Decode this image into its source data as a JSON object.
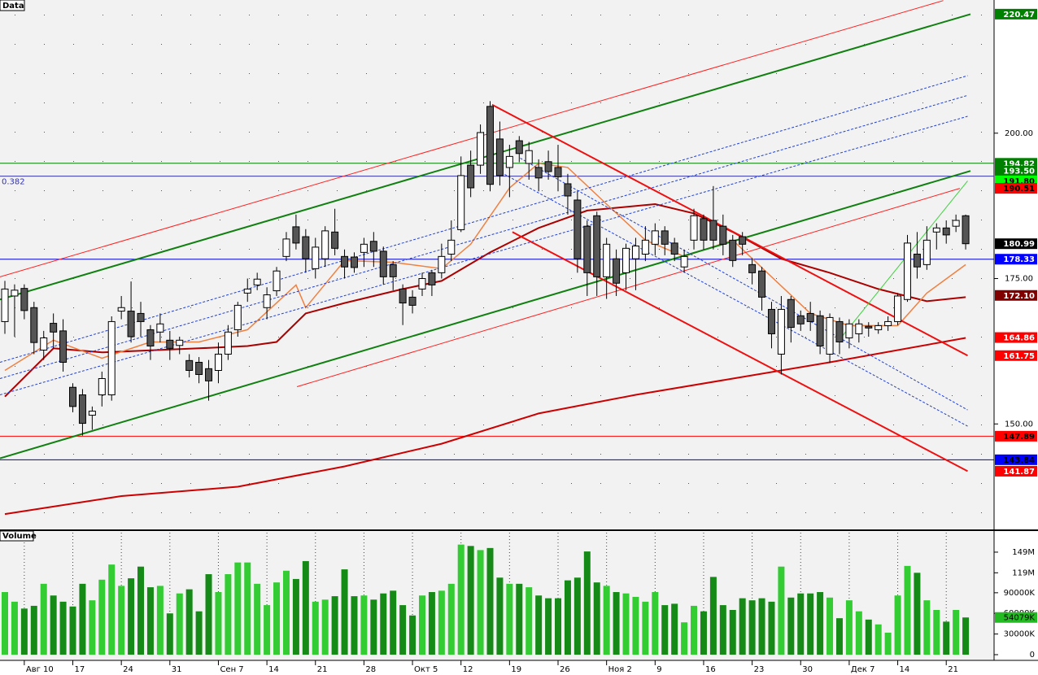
{
  "chart_data": [
    {
      "type": "candlestick",
      "title": "Data",
      "ylim": [
        132,
        222.9
      ],
      "yticks": [
        {
          "value": 150,
          "label": "150.00"
        },
        {
          "value": 175,
          "label": "175.00"
        },
        {
          "value": 200,
          "label": "200.00"
        }
      ],
      "up_color": "#ffffff",
      "down_color": "#555555",
      "open": [
        167.6,
        172,
        173.3,
        170,
        162.7,
        167.3,
        166,
        156.3,
        155,
        151.5,
        155,
        155,
        169.4,
        169.4,
        169,
        166.2,
        165.8,
        164.4,
        163.5,
        160.9,
        160.6,
        159.5,
        159.2,
        162,
        166.2,
        172.5,
        173.9,
        170,
        172.9,
        178.8,
        183.9,
        182.2,
        176.7,
        178.4,
        183,
        178.8,
        178.7,
        179.5,
        181.4,
        179.7,
        177.4,
        173.2,
        171.8,
        173.2,
        176,
        176,
        179.2,
        183.4,
        194.5,
        194.5,
        204.6,
        199,
        194.1,
        198.7,
        194.8,
        194.1,
        195.1,
        194.1,
        191.3,
        188.5,
        184,
        185.8,
        175.3,
        178.4,
        176,
        178.4,
        179.2,
        180.9,
        183.2,
        181.1,
        177,
        181.6,
        185.3,
        185,
        184,
        181.6,
        182.2,
        177.4,
        176.3,
        169.7,
        162,
        171.4,
        168.6,
        169,
        168.6,
        162,
        167.6,
        164.8,
        165.5,
        166.8,
        166.2,
        166.9,
        167.6,
        171.4,
        179.2,
        177.4,
        183,
        183.7,
        184,
        185.8
      ],
      "high": [
        174.6,
        174,
        174,
        171,
        166,
        169,
        168,
        157,
        156,
        153,
        159,
        168.5,
        172,
        174.5,
        171,
        167,
        169,
        166,
        165,
        162,
        161.5,
        161,
        164,
        167,
        171,
        175,
        176,
        173.5,
        177,
        183,
        186,
        183.5,
        182,
        184,
        187,
        180,
        179.5,
        182,
        183,
        180.5,
        178,
        174,
        173,
        176,
        176.5,
        181,
        185,
        196,
        197,
        201.5,
        205.5,
        202,
        198,
        199.5,
        198.5,
        195.5,
        197,
        198,
        193,
        190,
        185,
        186.5,
        182,
        180,
        181,
        182,
        184,
        184.5,
        184,
        182,
        180,
        187,
        186,
        190.9,
        186,
        182.5,
        183,
        178.5,
        177,
        171,
        172,
        172,
        169.5,
        171,
        169.5,
        169,
        168.3,
        168,
        168,
        167.5,
        167.5,
        168.5,
        172.5,
        182.5,
        183,
        184,
        184.5,
        185,
        186,
        186
      ],
      "low": [
        165.5,
        165,
        168,
        162,
        161,
        163,
        159,
        152,
        148,
        149,
        153,
        154,
        168,
        164,
        165,
        161,
        164,
        161,
        162,
        158,
        157,
        154,
        157,
        161,
        165,
        171,
        173,
        168,
        172,
        178,
        180,
        176,
        175,
        177,
        179,
        175,
        176,
        177,
        177,
        174,
        173,
        167,
        169,
        172,
        172,
        175,
        178,
        183,
        189,
        193,
        190,
        191,
        189,
        195,
        192,
        190,
        192,
        190,
        186,
        176,
        172,
        172,
        171.5,
        172,
        173,
        173,
        178,
        179,
        179,
        178,
        176,
        180,
        180,
        180,
        179,
        177,
        179,
        174,
        169.5,
        163,
        158.5,
        164,
        166,
        166,
        162,
        160.5,
        162,
        163,
        164,
        165,
        165.5,
        166,
        167,
        171,
        175,
        176.5,
        180,
        181,
        183,
        180
      ],
      "close": [
        173.2,
        173,
        169.5,
        164,
        164.8,
        165.8,
        160.6,
        153,
        150.1,
        152.2,
        157.8,
        167.6,
        170,
        165,
        167.6,
        163.4,
        167.2,
        163,
        164.4,
        159.2,
        158.5,
        157.4,
        162,
        165.8,
        170.4,
        173.2,
        174.9,
        172.2,
        176.3,
        181.8,
        181.1,
        178.4,
        180.4,
        183.2,
        180.2,
        177,
        176.9,
        180.9,
        179.7,
        175.3,
        175.3,
        170.8,
        170.4,
        175,
        173.9,
        178.8,
        181.6,
        192.7,
        190.6,
        200.1,
        191.2,
        192.7,
        196,
        196.5,
        197,
        192.3,
        193.4,
        192.5,
        189.2,
        178.4,
        176,
        175.3,
        180.9,
        174.2,
        180.2,
        180.6,
        181.6,
        183.2,
        180.9,
        179.2,
        178.8,
        185.8,
        181.6,
        181.6,
        180.9,
        178.1,
        180.9,
        176,
        171.8,
        165.5,
        169.7,
        166.6,
        167.2,
        167.6,
        163.4,
        168.3,
        164.1,
        167.2,
        167.2,
        166.5,
        166.9,
        167.6,
        172,
        181.1,
        177,
        181.6,
        183.7,
        182.5,
        185,
        180.99
      ],
      "lines": [
        {
          "color": "#cc0000",
          "width": 2,
          "dash": false,
          "x": [
            0,
            12,
            24,
            35,
            45,
            55,
            65,
            75,
            85,
            99
          ],
          "values": [
            134.5,
            137.6,
            139.2,
            142.7,
            146.6,
            151.8,
            155,
            157.8,
            160.6,
            164.8
          ]
        },
        {
          "color": "#aa0000",
          "width": 2,
          "dash": false,
          "x": [
            0,
            5,
            10,
            20,
            25,
            28,
            31,
            35,
            41,
            45,
            50,
            55,
            60,
            67,
            71,
            75,
            80,
            85,
            90,
            95,
            99
          ],
          "values": [
            154.7,
            163,
            162.3,
            163,
            163.4,
            164.1,
            169,
            170.8,
            173.2,
            174.6,
            179.5,
            183.7,
            186.7,
            187.8,
            186.2,
            183,
            178.4,
            176,
            173.2,
            171.1,
            171.8
          ]
        },
        {
          "color": "#f08040",
          "width": 1.5,
          "dash": false,
          "x": [
            0,
            5,
            10,
            15,
            20,
            25,
            30,
            31,
            35,
            40,
            45,
            48,
            52,
            55,
            58,
            62,
            66,
            70,
            75,
            79,
            83,
            87,
            92,
            95,
            99
          ],
          "values": [
            159.2,
            164.4,
            161.3,
            164.1,
            164.1,
            166.2,
            173.9,
            170,
            178.1,
            177.8,
            176.7,
            180.9,
            190.6,
            194.8,
            194.1,
            187.8,
            181.6,
            178.8,
            181.6,
            175.3,
            169,
            166.9,
            166.9,
            172.5,
            177.4
          ]
        },
        {
          "color": "#108010",
          "width": 2,
          "dash": false,
          "x": [
            -0.5,
            99.5
          ],
          "values": [
            171.4,
            220.47
          ]
        },
        {
          "color": "#108010",
          "width": 2,
          "dash": false,
          "x": [
            -0.5,
            99.5
          ],
          "values": [
            144.1,
            193.5
          ]
        },
        {
          "color": "#ff2020",
          "width": 1,
          "dash": false,
          "x": [
            -0.5,
            96.7
          ],
          "values": [
            175.3,
            222.8
          ]
        },
        {
          "color": "#ff2020",
          "width": 1,
          "dash": false,
          "x": [
            30.1,
            98.4
          ],
          "values": [
            156.4,
            190.51
          ]
        },
        {
          "color": "#2040d0",
          "width": 1,
          "dash": true,
          "x": [
            -0.5,
            99.2
          ],
          "values": [
            160.6,
            209.9
          ]
        },
        {
          "color": "#2040d0",
          "width": 1,
          "dash": true,
          "x": [
            -0.5,
            99.2
          ],
          "values": [
            155,
            202.9
          ]
        },
        {
          "color": "#2040d0",
          "width": 1,
          "dash": true,
          "x": [
            -0.5,
            99.2
          ],
          "values": [
            157.8,
            206.5
          ]
        },
        {
          "color": "#ee1010",
          "width": 2,
          "dash": false,
          "x": [
            50.2,
            99.2
          ],
          "values": [
            204.9,
            161.75
          ]
        },
        {
          "color": "#ee1010",
          "width": 2,
          "dash": false,
          "x": [
            52.3,
            99.2
          ],
          "values": [
            183,
            141.87
          ]
        },
        {
          "color": "#2040d0",
          "width": 1,
          "dash": true,
          "x": [
            53.1,
            99.2
          ],
          "values": [
            195.7,
            152.4
          ]
        },
        {
          "color": "#2040d0",
          "width": 1,
          "dash": true,
          "x": [
            51.5,
            99.2
          ],
          "values": [
            192.9,
            149.6
          ]
        },
        {
          "color": "#40d040",
          "width": 1,
          "dash": false,
          "x": [
            85.8,
            99.2
          ],
          "values": [
            164.1,
            191.8
          ]
        }
      ],
      "hlines": [
        {
          "value": 147.89,
          "color": "#ff0000"
        },
        {
          "value": 143.84,
          "color": "#0000cc"
        },
        {
          "value": 178.33,
          "color": "#0000cc"
        },
        {
          "value": 194.82,
          "color": "#008000"
        },
        {
          "value": 192.6,
          "color": "#3333aa",
          "name": "0.382"
        }
      ],
      "price_labels": [
        {
          "value": 220.47,
          "color": "#008000",
          "text_color": "#ffffff"
        },
        {
          "value": 194.82,
          "color": "#008000",
          "text_color": "#ffffff"
        },
        {
          "value": 193.5,
          "label": "193.50",
          "color": "#008000",
          "text_color": "#ffffff"
        },
        {
          "value": 191.8,
          "label": "191.80",
          "color": "#00ff00",
          "text_color": "#000000"
        },
        {
          "value": 190.51,
          "color": "#ff0000",
          "text_color": "#000000"
        },
        {
          "value": 180.99,
          "color": "#000000",
          "text_color": "#ffffff"
        },
        {
          "value": 178.33,
          "color": "#0000ff",
          "text_color": "#ffffff"
        },
        {
          "value": 172.1,
          "label": "172.10",
          "color": "#800000",
          "text_color": "#ffffff"
        },
        {
          "value": 164.86,
          "color": "#ff0000",
          "text_color": "#ffffff"
        },
        {
          "value": 161.75,
          "color": "#ff0000",
          "text_color": "#ffffff"
        },
        {
          "value": 147.89,
          "color": "#ff0000",
          "text_color": "#000000"
        },
        {
          "value": 143.84,
          "color": "#0000ff",
          "text_color": "#000000"
        },
        {
          "value": 141.87,
          "color": "#ff0000",
          "text_color": "#ffffff"
        }
      ]
    },
    {
      "type": "bar",
      "title": "Volume",
      "categories": [
        null,
        null,
        "Авг 10",
        null,
        null,
        null,
        null,
        "17",
        null,
        null,
        null,
        null,
        "24",
        null,
        null,
        null,
        null,
        "31",
        null,
        null,
        null,
        null,
        "Сен 7",
        null,
        null,
        null,
        null,
        "14",
        null,
        null,
        null,
        null,
        "21",
        null,
        null,
        null,
        null,
        "28",
        null,
        null,
        null,
        null,
        "Окт 5",
        null,
        null,
        null,
        null,
        "12",
        null,
        null,
        null,
        null,
        "19",
        null,
        null,
        null,
        null,
        "26",
        null,
        null,
        null,
        null,
        "Ноя 2",
        null,
        null,
        null,
        null,
        "9",
        null,
        null,
        null,
        null,
        "16",
        null,
        null,
        null,
        null,
        "23",
        null,
        null,
        null,
        null,
        "30",
        null,
        null,
        null,
        null,
        "Дек 7",
        null,
        null,
        null,
        null,
        "14",
        null,
        null,
        null,
        null,
        "21",
        null,
        null
      ],
      "values": [
        91,
        77,
        67,
        71,
        103,
        86,
        77,
        70,
        103,
        79,
        109,
        131,
        100,
        111,
        128,
        98,
        100,
        60,
        89,
        95,
        63,
        117,
        91,
        117,
        134,
        134,
        103,
        72,
        105,
        122,
        110,
        136,
        77,
        80,
        85,
        124,
        85,
        86,
        80,
        89,
        93,
        72,
        57,
        86,
        91,
        93,
        103,
        160,
        158,
        152,
        155,
        112,
        103,
        103,
        98,
        86,
        82,
        82,
        108,
        112,
        150,
        105,
        100,
        91,
        89,
        84,
        77,
        91,
        72,
        74,
        47,
        71,
        63,
        113,
        72,
        65,
        82,
        79,
        82,
        77,
        128,
        83,
        89,
        89,
        91,
        83,
        53,
        79,
        63,
        51,
        44,
        32,
        86,
        129,
        119,
        79,
        65,
        48,
        65,
        54.079
      ],
      "ylim": [
        0,
        177.3
      ],
      "yticks": [
        0,
        {
          "value": 30,
          "label": "30000K"
        },
        {
          "value": 60,
          "label": "60000K"
        },
        {
          "value": 90,
          "label": "90000K"
        },
        {
          "value": 119,
          "label": "119M"
        },
        {
          "value": 149,
          "label": "149M"
        }
      ],
      "up_color": "#33cc33",
      "down_color": "#168a16",
      "last_label": {
        "value": 54.079,
        "label": "54079K",
        "color": "#22bb22"
      }
    }
  ]
}
